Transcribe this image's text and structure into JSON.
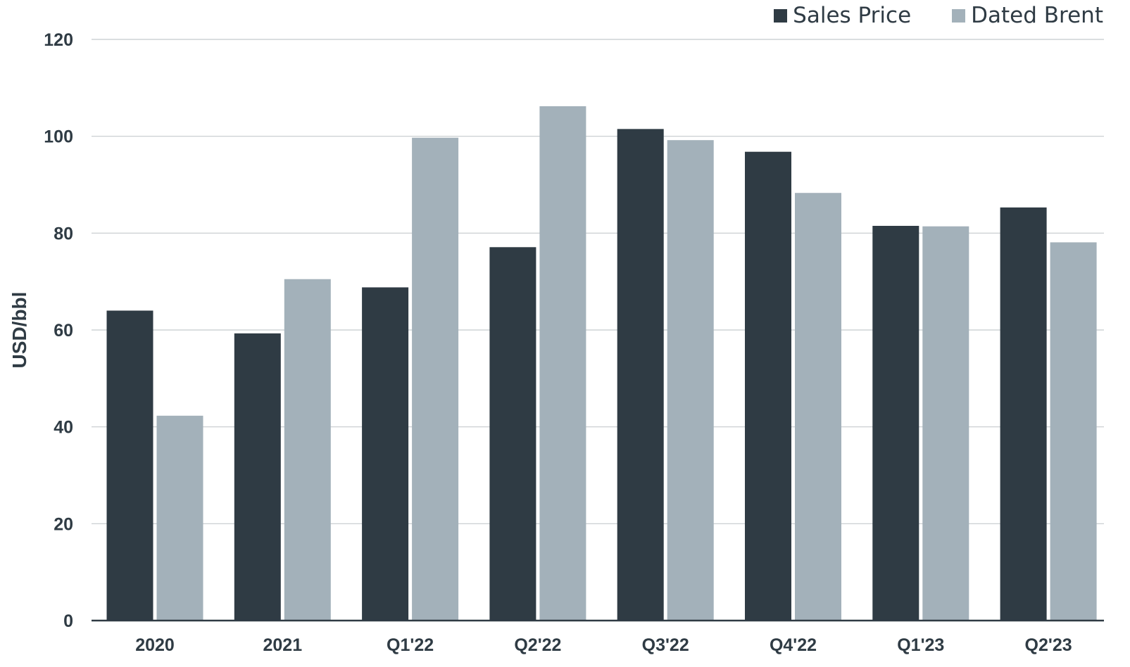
{
  "chart_data": {
    "type": "bar",
    "title": "",
    "xlabel": "",
    "ylabel": "USD/bbl",
    "ylim": [
      0,
      120
    ],
    "yticks": [
      0,
      20,
      40,
      60,
      80,
      100,
      120
    ],
    "grid": true,
    "legend_position": "top-right",
    "categories": [
      "2020",
      "2021",
      "Q1'22",
      "Q2'22",
      "Q3'22",
      "Q4'22",
      "Q1'23",
      "Q2'23"
    ],
    "series": [
      {
        "name": "Sales Price",
        "color": "#2f3b44",
        "values": [
          64.0,
          59.3,
          68.8,
          77.1,
          101.5,
          96.8,
          81.5,
          85.3
        ]
      },
      {
        "name": "Dated Brent",
        "color": "#a3b1ba",
        "values": [
          42.3,
          70.5,
          99.7,
          106.2,
          99.2,
          88.3,
          81.4,
          78.1
        ]
      }
    ]
  }
}
